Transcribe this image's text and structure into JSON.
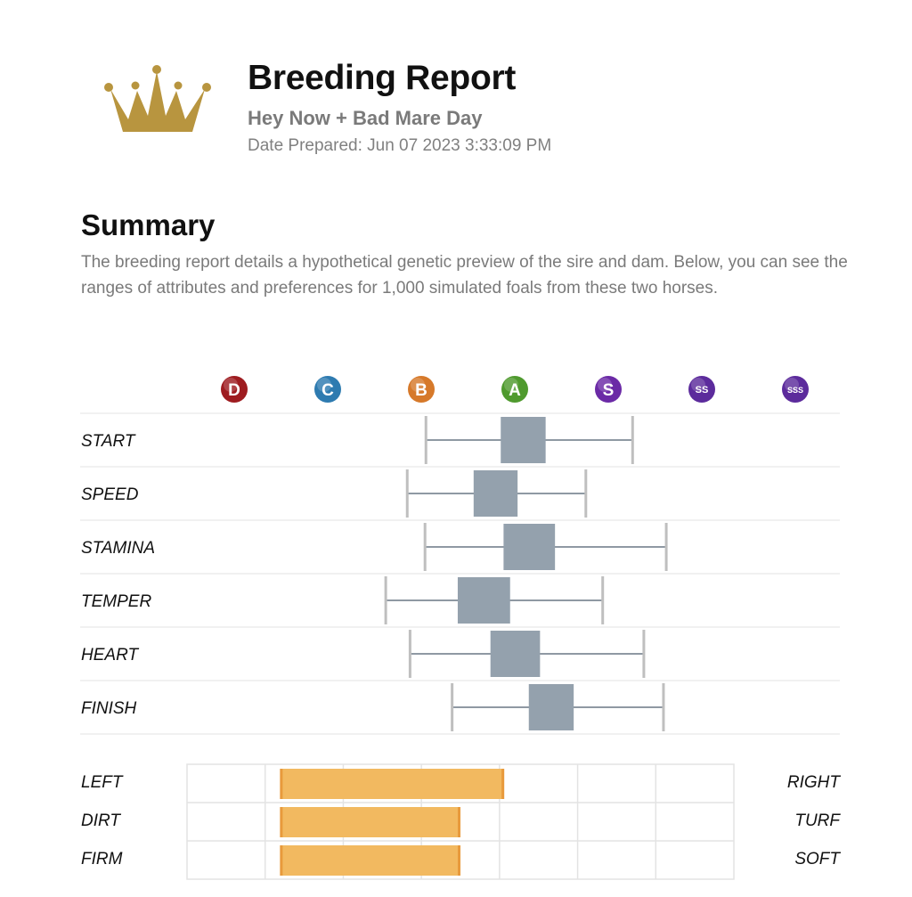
{
  "header": {
    "title": "Breeding Report",
    "pair": "Hey Now + Bad Mare Day",
    "date_prepared": "Date Prepared: Jun 07 2023 3:33:09 PM"
  },
  "summary": {
    "heading": "Summary",
    "text": "The breeding report details a hypothetical genetic preview of the sire and dam. Below, you can see the ranges of attributes and preferences for 1,000 simulated foals from these two horses."
  },
  "colors": {
    "crown": "#b8953f",
    "box": "#94a1ad",
    "whisker": "#8f99a3",
    "cap": "#bfbfbf",
    "pref_bar": "#f2b960",
    "pref_edge": "#e89a3c",
    "grid": "#e3e3e3"
  },
  "chart_data": [
    {
      "type": "boxplot",
      "scale": [
        "D",
        "C",
        "B",
        "A",
        "S",
        "SS",
        "SSS"
      ],
      "scale_colors": [
        "#9e1c20",
        "#2e7bb0",
        "#d6792a",
        "#4f9a2e",
        "#6b2aa6",
        "#5c2b9c",
        "#5c2b9c"
      ],
      "x_range": [
        0,
        6
      ],
      "rows": [
        {
          "label": "START",
          "min": 2.05,
          "q1": 2.85,
          "q3": 3.33,
          "max": 4.26
        },
        {
          "label": "SPEED",
          "min": 1.85,
          "q1": 2.56,
          "q3": 3.03,
          "max": 3.76
        },
        {
          "label": "STAMINA",
          "min": 2.04,
          "q1": 2.88,
          "q3": 3.43,
          "max": 4.62
        },
        {
          "label": "TEMPER",
          "min": 1.62,
          "q1": 2.39,
          "q3": 2.95,
          "max": 3.94
        },
        {
          "label": "HEART",
          "min": 1.88,
          "q1": 2.74,
          "q3": 3.27,
          "max": 4.38
        },
        {
          "label": "FINISH",
          "min": 2.33,
          "q1": 3.15,
          "q3": 3.63,
          "max": 4.59
        }
      ]
    },
    {
      "type": "bar",
      "categories": [
        {
          "left": "LEFT",
          "right": "RIGHT"
        },
        {
          "left": "DIRT",
          "right": "TURF"
        },
        {
          "left": "FIRM",
          "right": "SOFT"
        }
      ],
      "range": [
        [
          0.17,
          0.58
        ],
        [
          0.17,
          0.5
        ],
        [
          0.17,
          0.5
        ]
      ],
      "grid_divisions": 7
    }
  ]
}
